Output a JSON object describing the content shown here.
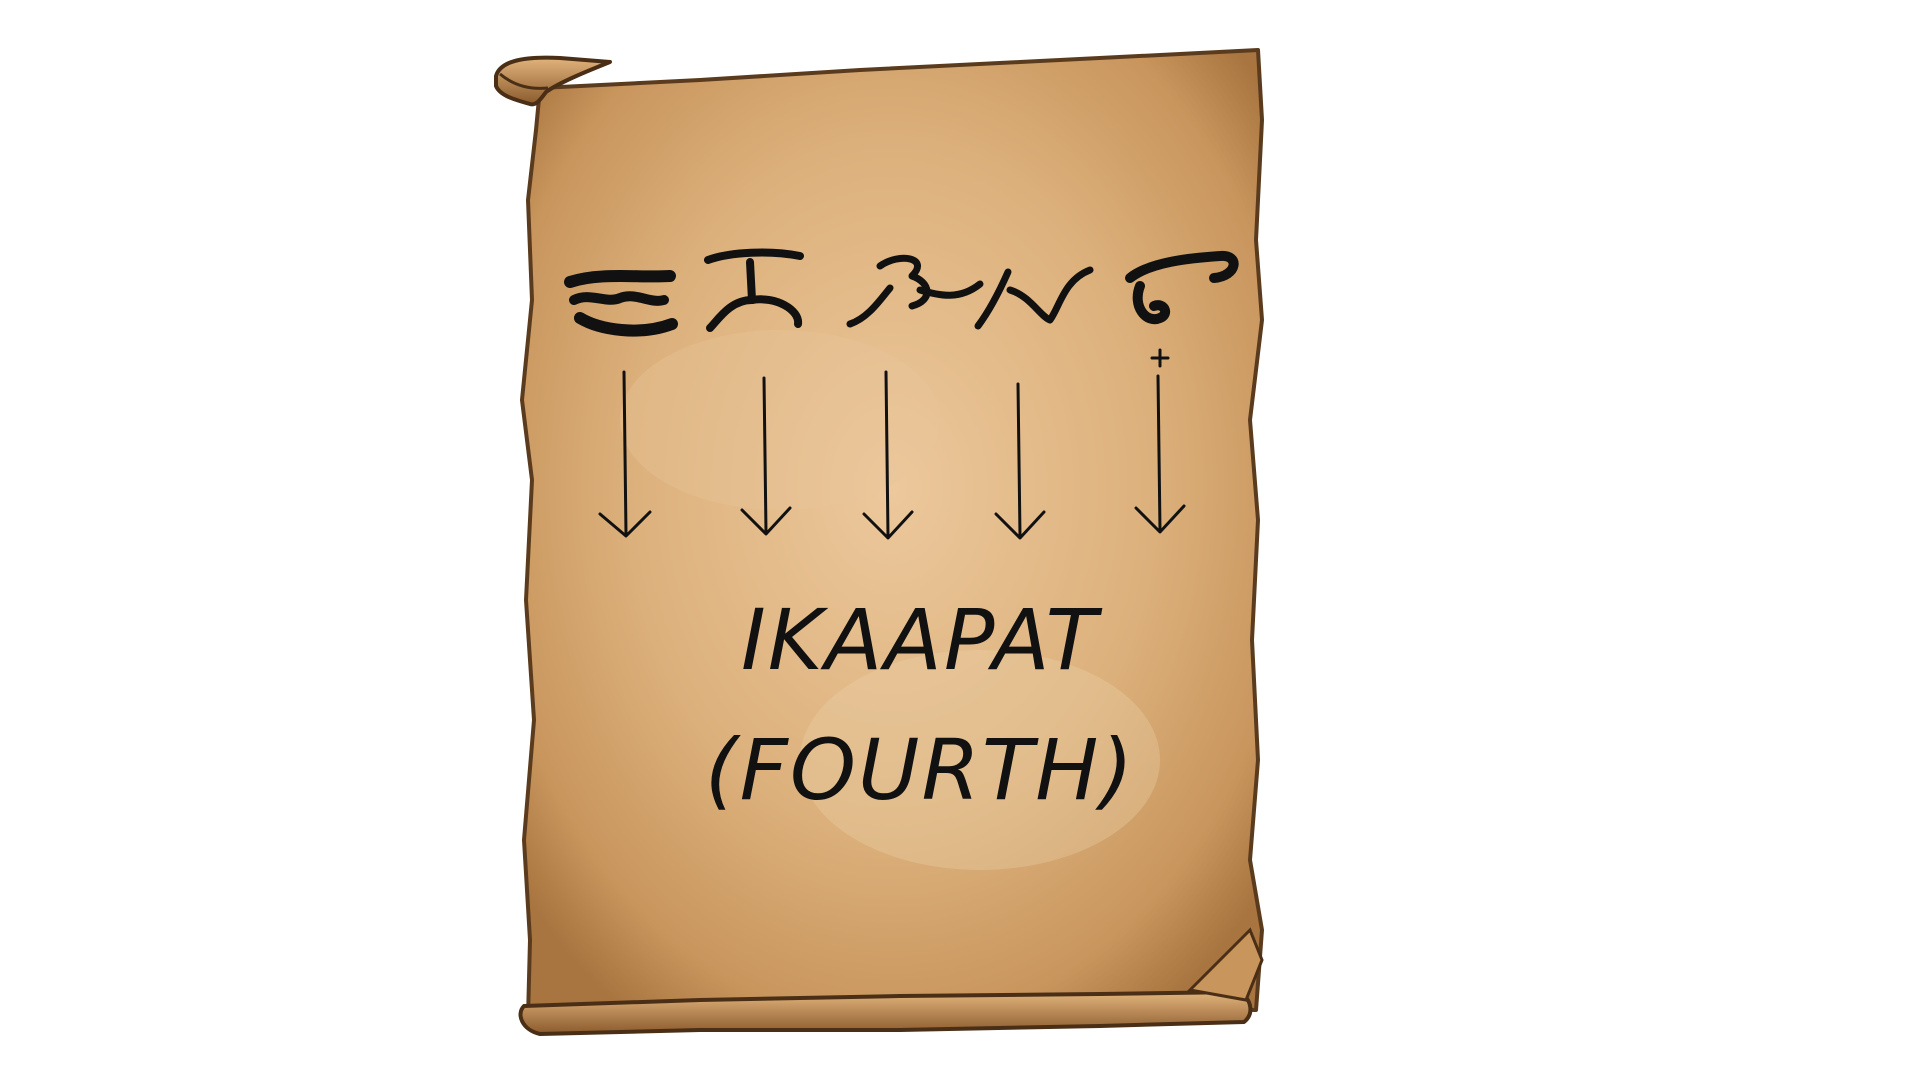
{
  "scroll": {
    "word": "IKAAPAT",
    "translation": "(FOURTH)",
    "script_glyphs": [
      "baybayin-i",
      "baybayin-ka",
      "baybayin-a",
      "baybayin-pa",
      "baybayin-t-with-virama"
    ],
    "arrow_count": 5,
    "colors": {
      "parchment_light": "#e7c293",
      "parchment_mid": "#d6a872",
      "parchment_edge": "#9a6a3a",
      "parchment_outline": "#5a3b1e",
      "ink": "#111111"
    }
  }
}
